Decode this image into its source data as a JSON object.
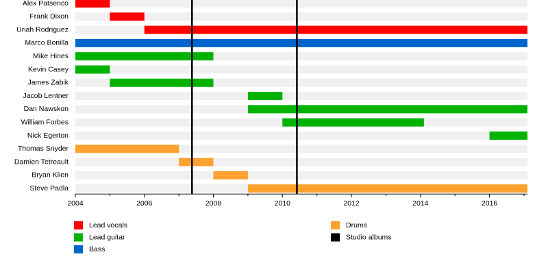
{
  "chart_data": {
    "type": "timeline",
    "categories": [
      "Alex Patsenco",
      "Frank Dixon",
      "Uriah Rodriguez",
      "Marco Bonilla",
      "Mike Hines",
      "Kevin Casey",
      "James Zabik",
      "Jacob Lentner",
      "Dan Nawskon",
      "William Forbes",
      "Nick Egerton",
      "Thomas Snyder",
      "Damien Tetreault",
      "Bryan Klien",
      "Steve Padla"
    ],
    "series": [
      {
        "name": "Lead vocals",
        "color": "#ff0000",
        "values": [
          [
            2004,
            2005
          ],
          [
            2005,
            2006
          ],
          [
            2006,
            2017.1
          ],
          null,
          null,
          null,
          null,
          null,
          null,
          null,
          null,
          null,
          null,
          null,
          null
        ]
      },
      {
        "name": "Lead guitar",
        "color": "#00b300",
        "values": [
          null,
          null,
          null,
          null,
          [
            2004,
            2008
          ],
          [
            2004,
            2005
          ],
          [
            2005,
            2008
          ],
          [
            2009,
            2010
          ],
          [
            2009,
            2017.1
          ],
          [
            2010,
            2014.1
          ],
          [
            2016,
            2017.1
          ],
          null,
          null,
          null,
          null
        ]
      },
      {
        "name": "Bass",
        "color": "#0066cc",
        "values": [
          null,
          null,
          null,
          [
            2004,
            2017.1
          ],
          null,
          null,
          null,
          null,
          null,
          null,
          null,
          null,
          null,
          null,
          null
        ]
      },
      {
        "name": "Drums",
        "color": "#ffa12f",
        "values": [
          null,
          null,
          null,
          null,
          null,
          null,
          null,
          null,
          null,
          null,
          null,
          [
            2004,
            2007
          ],
          [
            2007,
            2008
          ],
          [
            2008,
            2009
          ],
          [
            2009,
            2017.1
          ]
        ]
      }
    ],
    "events": {
      "name": "Studio albums",
      "color": "#000000",
      "values": [
        2007.38,
        2010.42
      ]
    },
    "xlim": [
      2004,
      2017.1
    ],
    "xticks": [
      2004,
      2006,
      2008,
      2010,
      2012,
      2014,
      2016
    ],
    "xminorticks": [
      2005,
      2007,
      2009,
      2011,
      2013,
      2015,
      2017
    ],
    "stripe_color": "#f0f0f0"
  }
}
